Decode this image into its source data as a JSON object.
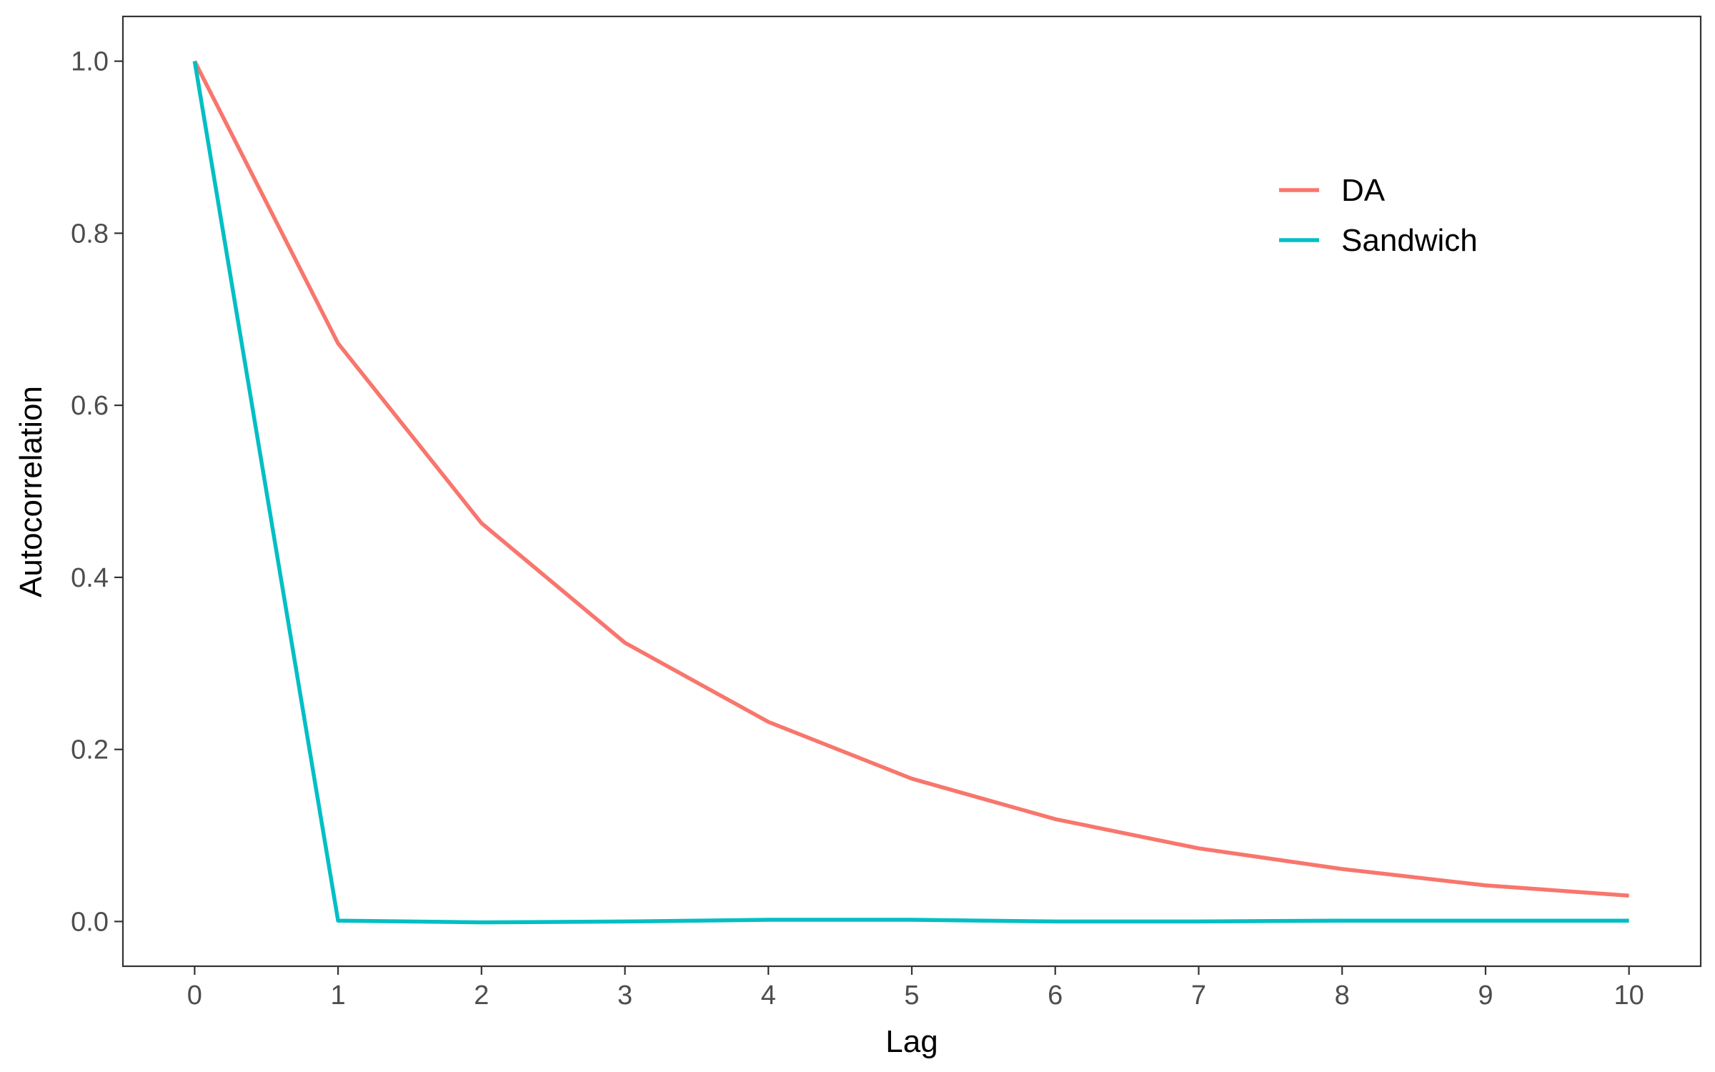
{
  "chart_data": {
    "type": "line",
    "title": "",
    "xlabel": "Lag",
    "ylabel": "Autocorrelation",
    "x": [
      0,
      1,
      2,
      3,
      4,
      5,
      6,
      7,
      8,
      9,
      10
    ],
    "xlim": [
      -0.5,
      10.5
    ],
    "ylim": [
      -0.052,
      1.052
    ],
    "xticks": [
      0,
      1,
      2,
      3,
      4,
      5,
      6,
      7,
      8,
      9,
      10
    ],
    "xtick_labels": [
      "0",
      "1",
      "2",
      "3",
      "4",
      "5",
      "6",
      "7",
      "8",
      "9",
      "10"
    ],
    "yticks": [
      0.0,
      0.2,
      0.4,
      0.6,
      0.8,
      1.0
    ],
    "ytick_labels": [
      "0.0",
      "0.2",
      "0.4",
      "0.6",
      "0.8",
      "1.0"
    ],
    "grid": false,
    "legend_position": "top-right",
    "series": [
      {
        "name": "DA",
        "color": "#F8766D",
        "values": [
          1.0,
          0.672,
          0.463,
          0.324,
          0.232,
          0.166,
          0.119,
          0.085,
          0.061,
          0.042,
          0.03
        ]
      },
      {
        "name": "Sandwich",
        "color": "#00BFC4",
        "values": [
          1.0,
          0.001,
          -0.001,
          0.0,
          0.002,
          0.002,
          0.0,
          0.0,
          0.001,
          0.001,
          0.001
        ]
      }
    ]
  }
}
